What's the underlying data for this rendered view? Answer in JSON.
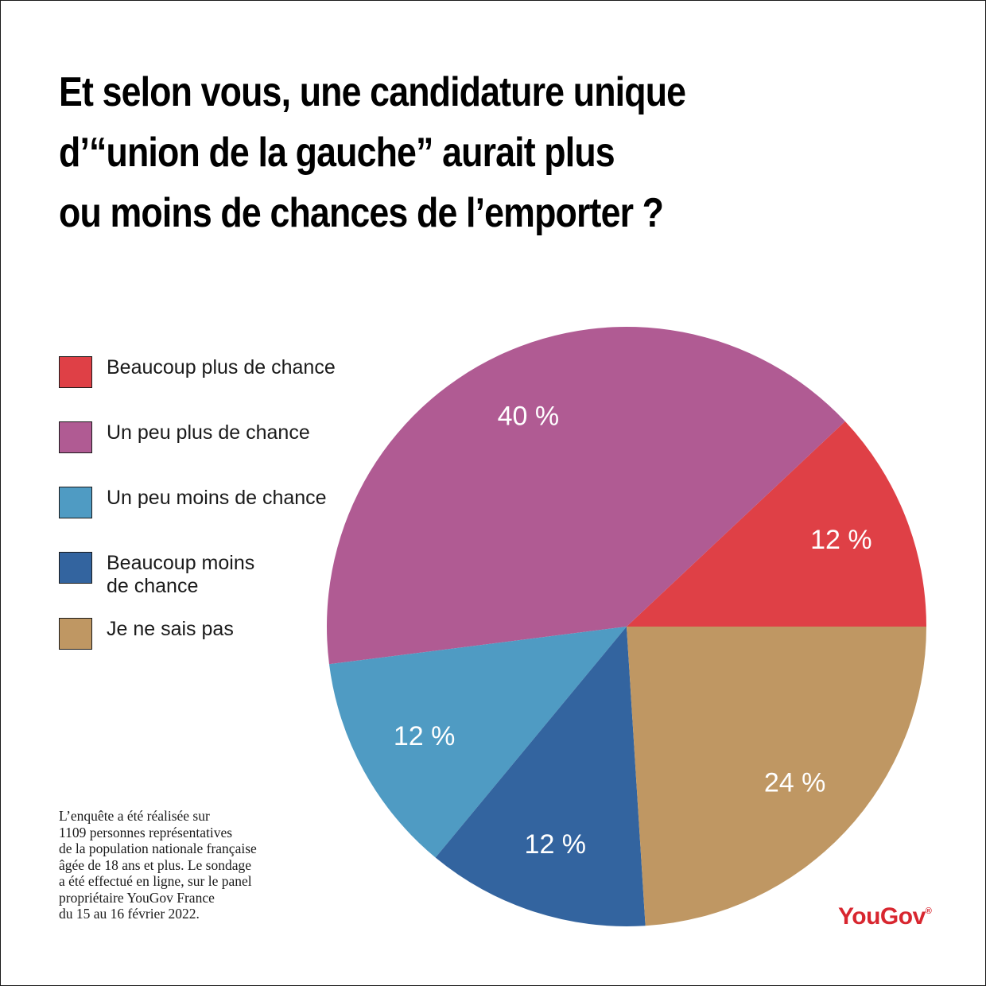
{
  "title_lines": [
    "Et selon vous, une candidature unique",
    "d’“union de la gauche” aurait plus",
    "ou moins de chances de l’emporter ?"
  ],
  "legend": [
    {
      "label": "Beaucoup plus de chance",
      "color": "#df4046"
    },
    {
      "label": "Un peu plus de chance",
      "color": "#b05b93"
    },
    {
      "label": "Un peu moins de chance",
      "color": "#4f9bc3"
    },
    {
      "label": "Beaucoup moins\nde chance",
      "color": "#33649f"
    },
    {
      "label": "Je ne sais pas",
      "color": "#bf9763"
    }
  ],
  "note": "L’enquête a été réalisée sur\n1109 personnes représentatives\nde la population nationale française\nâgée de 18 ans et plus. Le sondage\na été effectué en ligne, sur le panel\npropriétaire YouGov France\ndu 15 au 16 février 2022.",
  "brand": "YouGov",
  "brand_mark": "®",
  "chart_data": {
    "type": "pie",
    "unit": "%",
    "slices": [
      {
        "category": "Beaucoup plus de chance",
        "value": 12,
        "label": "12 %",
        "color": "#df4046"
      },
      {
        "category": "Un peu plus de chance",
        "value": 40,
        "label": "40 %",
        "color": "#b05b93"
      },
      {
        "category": "Un peu moins de chance",
        "value": 12,
        "label": "12 %",
        "color": "#4f9bc3"
      },
      {
        "category": "Beaucoup moins de chance",
        "value": 12,
        "label": "12 %",
        "color": "#33649f"
      },
      {
        "category": "Je ne sais pas",
        "value": 24,
        "label": "24 %",
        "color": "#bf9763"
      }
    ],
    "legend_position": "left"
  }
}
